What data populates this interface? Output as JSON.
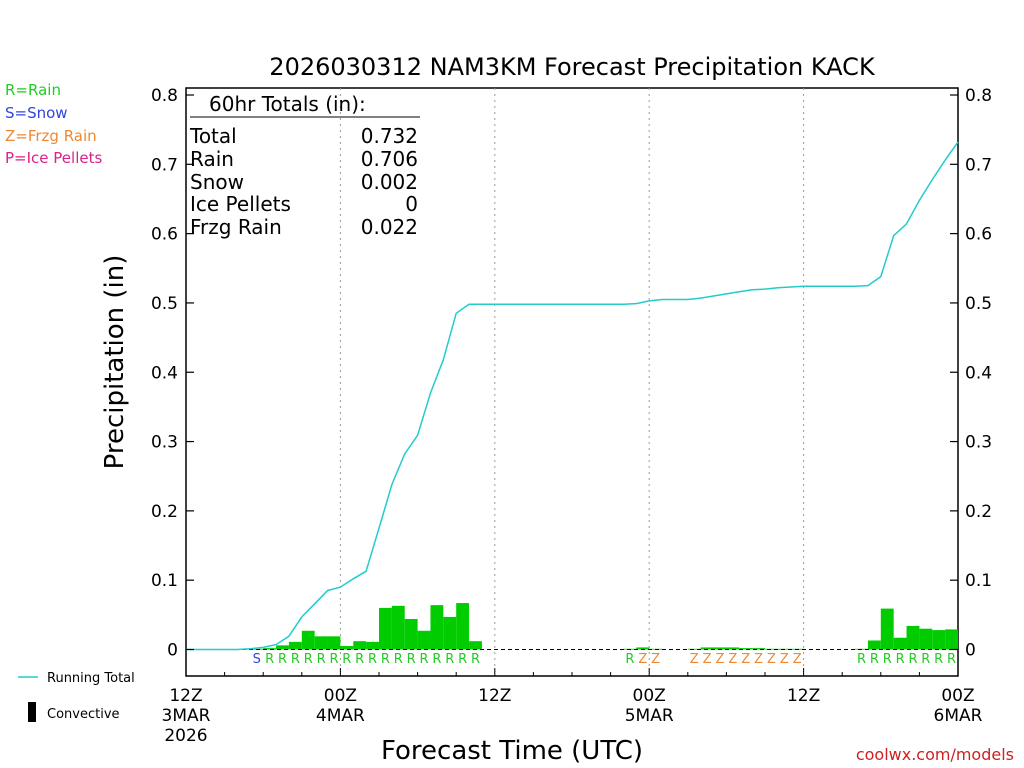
{
  "legend_types": {
    "rain": {
      "text": "R=Rain",
      "color": "#22cc22"
    },
    "snow": {
      "text": "S=Snow",
      "color": "#3344dd"
    },
    "frzg": {
      "text": "Z=Frzg Rain",
      "color": "#ee8833"
    },
    "ice": {
      "text": "P=Ice Pellets",
      "color": "#dd2288"
    }
  },
  "legend_lines": {
    "running_total": {
      "text": "Running Total",
      "color": "#22cccc"
    },
    "convective": {
      "text": "Convective",
      "color": "#000000"
    }
  },
  "credit": "coolwx.com/models",
  "totals": {
    "header": "60hr Totals (in):",
    "rows": [
      {
        "label": "Total",
        "value": "0.732"
      },
      {
        "label": "Rain",
        "value": "0.706"
      },
      {
        "label": "Snow",
        "value": "0.002"
      },
      {
        "label": "Ice Pellets",
        "value": "0"
      },
      {
        "label": "Frzg Rain",
        "value": "0.022"
      }
    ]
  },
  "chart_data": {
    "type": "bar",
    "title": "2026030312 NAM3KM Forecast Precipitation KACK",
    "xlabel": "Forecast Time (UTC)",
    "ylabel": "Precipitation (in)",
    "ylim": [
      0,
      0.8
    ],
    "xlim": [
      0,
      60
    ],
    "yticks": [
      0,
      0.1,
      0.2,
      0.3,
      0.4,
      0.5,
      0.6,
      0.7,
      0.8
    ],
    "xticks": [
      {
        "hour": 0,
        "lines": [
          "12Z",
          "3MAR",
          "2026"
        ]
      },
      {
        "hour": 12,
        "lines": [
          "00Z",
          "4MAR"
        ]
      },
      {
        "hour": 24,
        "lines": [
          "12Z"
        ]
      },
      {
        "hour": 36,
        "lines": [
          "00Z",
          "5MAR"
        ]
      },
      {
        "hour": 48,
        "lines": [
          "12Z"
        ]
      },
      {
        "hour": 60,
        "lines": [
          "00Z",
          "6MAR"
        ]
      }
    ],
    "grid_hours": [
      12,
      24,
      36,
      48
    ],
    "colors": {
      "bar": "#00cc00",
      "line": "#22cccc",
      "rain": "#22cc22",
      "snow": "#3344dd",
      "frzg": "#ee8833"
    },
    "hourly_precip": {
      "name": "Hourly Precipitation",
      "hours": [
        6,
        7,
        8,
        9,
        10,
        11,
        12,
        13,
        14,
        15,
        16,
        17,
        18,
        19,
        20,
        21,
        22,
        23,
        24,
        35,
        36,
        37,
        40,
        41,
        42,
        43,
        44,
        45,
        46,
        47,
        48,
        53,
        54,
        55,
        56,
        57,
        58,
        59,
        60
      ],
      "values": [
        0.001,
        0.002,
        0.006,
        0.011,
        0.027,
        0.019,
        0.019,
        0.005,
        0.012,
        0.011,
        0.06,
        0.063,
        0.044,
        0.027,
        0.064,
        0.047,
        0.067,
        0.012,
        0.0,
        0.001,
        0.003,
        0.001,
        0.001,
        0.003,
        0.003,
        0.003,
        0.002,
        0.002,
        0.001,
        0.001,
        0.001,
        0.001,
        0.013,
        0.059,
        0.017,
        0.034,
        0.03,
        0.028,
        0.029
      ]
    },
    "running_total": {
      "name": "Running Total",
      "hours": [
        0,
        1,
        2,
        3,
        4,
        5,
        6,
        7,
        8,
        9,
        10,
        11,
        12,
        13,
        14,
        15,
        16,
        17,
        18,
        19,
        20,
        21,
        22,
        23,
        24,
        25,
        26,
        27,
        28,
        29,
        30,
        31,
        32,
        33,
        34,
        35,
        36,
        37,
        38,
        39,
        40,
        41,
        42,
        43,
        44,
        45,
        46,
        47,
        48,
        49,
        50,
        51,
        52,
        53,
        54,
        55,
        56,
        57,
        58,
        59,
        60
      ],
      "values": [
        0,
        0,
        0,
        0,
        0,
        0.001,
        0.003,
        0.007,
        0.019,
        0.047,
        0.066,
        0.085,
        0.09,
        0.102,
        0.113,
        0.175,
        0.238,
        0.282,
        0.309,
        0.37,
        0.418,
        0.485,
        0.498,
        0.498,
        0.498,
        0.498,
        0.498,
        0.498,
        0.498,
        0.498,
        0.498,
        0.498,
        0.498,
        0.498,
        0.498,
        0.499,
        0.503,
        0.505,
        0.505,
        0.505,
        0.507,
        0.51,
        0.513,
        0.516,
        0.519,
        0.52,
        0.522,
        0.523,
        0.524,
        0.524,
        0.524,
        0.524,
        0.524,
        0.525,
        0.538,
        0.597,
        0.614,
        0.648,
        0.678,
        0.706,
        0.732
      ]
    },
    "ptype_labels": [
      {
        "hour": 6,
        "type": "S"
      },
      {
        "hour": 7,
        "type": "R"
      },
      {
        "hour": 8,
        "type": "R"
      },
      {
        "hour": 9,
        "type": "R"
      },
      {
        "hour": 10,
        "type": "R"
      },
      {
        "hour": 11,
        "type": "R"
      },
      {
        "hour": 12,
        "type": "R"
      },
      {
        "hour": 13,
        "type": "R"
      },
      {
        "hour": 14,
        "type": "R"
      },
      {
        "hour": 15,
        "type": "R"
      },
      {
        "hour": 16,
        "type": "R"
      },
      {
        "hour": 17,
        "type": "R"
      },
      {
        "hour": 18,
        "type": "R"
      },
      {
        "hour": 19,
        "type": "R"
      },
      {
        "hour": 20,
        "type": "R"
      },
      {
        "hour": 21,
        "type": "R"
      },
      {
        "hour": 22,
        "type": "R"
      },
      {
        "hour": 23,
        "type": "R"
      },
      {
        "hour": 35,
        "type": "R"
      },
      {
        "hour": 36,
        "type": "Z"
      },
      {
        "hour": 37,
        "type": "Z"
      },
      {
        "hour": 40,
        "type": "Z"
      },
      {
        "hour": 41,
        "type": "Z"
      },
      {
        "hour": 42,
        "type": "Z"
      },
      {
        "hour": 43,
        "type": "Z"
      },
      {
        "hour": 44,
        "type": "Z"
      },
      {
        "hour": 45,
        "type": "Z"
      },
      {
        "hour": 46,
        "type": "Z"
      },
      {
        "hour": 47,
        "type": "Z"
      },
      {
        "hour": 48,
        "type": "Z"
      },
      {
        "hour": 53,
        "type": "R"
      },
      {
        "hour": 54,
        "type": "R"
      },
      {
        "hour": 55,
        "type": "R"
      },
      {
        "hour": 56,
        "type": "R"
      },
      {
        "hour": 57,
        "type": "R"
      },
      {
        "hour": 58,
        "type": "R"
      },
      {
        "hour": 59,
        "type": "R"
      },
      {
        "hour": 60,
        "type": "R"
      }
    ]
  }
}
